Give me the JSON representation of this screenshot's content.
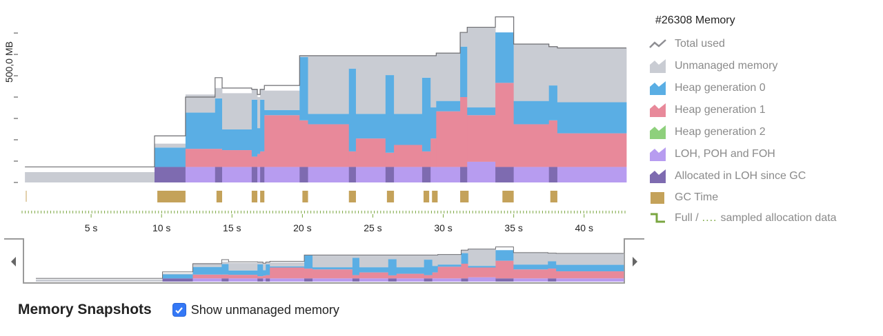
{
  "legend": {
    "title": "#26308 Memory",
    "items": [
      {
        "key": "total",
        "label": "Total used",
        "color": "#8e8e93",
        "style": "line"
      },
      {
        "key": "unmanaged",
        "label": "Unmanaged memory",
        "color": "#c9ccd3",
        "style": "area"
      },
      {
        "key": "gen0",
        "label": "Heap generation 0",
        "color": "#5aaee4",
        "style": "area"
      },
      {
        "key": "gen1",
        "label": "Heap generation 1",
        "color": "#e8899a",
        "style": "area"
      },
      {
        "key": "gen2",
        "label": "Heap generation 2",
        "color": "#8ed07c",
        "style": "area"
      },
      {
        "key": "loh",
        "label": "LOH, POH and FOH",
        "color": "#b79cf0",
        "style": "area"
      },
      {
        "key": "loh_alloc",
        "label": "Allocated in LOH since GC",
        "color": "#7e6bb0",
        "style": "area"
      },
      {
        "key": "gc",
        "label": "GC Time",
        "color": "#c4a25a",
        "style": "block"
      }
    ],
    "allocation": {
      "label_full": "Full /",
      "label_dots": "....",
      "label_rest": "sampled allocation data",
      "color": "#7aa640"
    }
  },
  "chart_data": {
    "type": "area",
    "ylabel": "500,0 MB",
    "y_tick_count": 8,
    "xlim": [
      0,
      43
    ],
    "x_ticks": [
      {
        "value": 5,
        "label": "5 s"
      },
      {
        "value": 10,
        "label": "10 s"
      },
      {
        "value": 15,
        "label": "15 s"
      },
      {
        "value": 20,
        "label": "20 s"
      },
      {
        "value": 25,
        "label": "25 s"
      },
      {
        "value": 30,
        "label": "30 s"
      },
      {
        "value": 35,
        "label": "35 s"
      },
      {
        "value": 40,
        "label": "40 s"
      }
    ],
    "gc_events": [
      [
        9.7,
        11.7
      ],
      [
        13.9,
        14.3
      ],
      [
        16.4,
        16.8
      ],
      [
        17.0,
        17.3
      ],
      [
        20.0,
        20.4
      ],
      [
        23.3,
        23.8
      ],
      [
        26.0,
        26.5
      ],
      [
        28.6,
        29.0
      ],
      [
        29.2,
        29.6
      ],
      [
        31.2,
        31.8
      ],
      [
        34.2,
        35.0
      ],
      [
        37.6,
        38.1
      ]
    ],
    "segments": [
      {
        "x0": 0.3,
        "x1": 9.5,
        "total": 60,
        "unmanaged": 40,
        "gen0": 0,
        "gen1": 0,
        "loh": 0,
        "loh_alloc": 0
      },
      {
        "x0": 9.5,
        "x1": 11.7,
        "total": 180,
        "unmanaged": 15,
        "gen0": 75,
        "gen1": 0,
        "loh": 0,
        "loh_alloc": 60
      },
      {
        "x0": 11.7,
        "x1": 13.8,
        "total": 330,
        "unmanaged": 70,
        "gen0": 140,
        "gen1": 70,
        "loh": 60,
        "loh_alloc": 0
      },
      {
        "x0": 13.8,
        "x1": 14.3,
        "total": 405,
        "unmanaged": 40,
        "gen0": 195,
        "gen1": 70,
        "loh": 0,
        "loh_alloc": 60
      },
      {
        "x0": 14.3,
        "x1": 16.4,
        "total": 365,
        "unmanaged": 140,
        "gen0": 80,
        "gen1": 65,
        "loh": 60,
        "loh_alloc": 0
      },
      {
        "x0": 16.4,
        "x1": 16.8,
        "total": 360,
        "unmanaged": 40,
        "gen0": 220,
        "gen1": 40,
        "loh": 0,
        "loh_alloc": 60
      },
      {
        "x0": 16.8,
        "x1": 17.0,
        "total": 340,
        "unmanaged": 120,
        "gen0": 100,
        "gen1": 50,
        "loh": 60,
        "loh_alloc": 0
      },
      {
        "x0": 17.0,
        "x1": 17.3,
        "total": 360,
        "unmanaged": 40,
        "gen0": 200,
        "gen1": 60,
        "loh": 0,
        "loh_alloc": 60
      },
      {
        "x0": 17.3,
        "x1": 19.8,
        "total": 375,
        "unmanaged": 75,
        "gen0": 20,
        "gen1": 200,
        "loh": 60,
        "loh_alloc": 0
      },
      {
        "x0": 19.8,
        "x1": 20.4,
        "total": 490,
        "unmanaged": 5,
        "gen0": 245,
        "gen1": 180,
        "loh": 0,
        "loh_alloc": 60
      },
      {
        "x0": 20.4,
        "x1": 23.3,
        "total": 490,
        "unmanaged": 225,
        "gen0": 40,
        "gen1": 165,
        "loh": 60,
        "loh_alloc": 0
      },
      {
        "x0": 23.3,
        "x1": 23.8,
        "total": 490,
        "unmanaged": 50,
        "gen0": 320,
        "gen1": 60,
        "loh": 0,
        "loh_alloc": 60
      },
      {
        "x0": 23.8,
        "x1": 25.9,
        "total": 490,
        "unmanaged": 225,
        "gen0": 95,
        "gen1": 110,
        "loh": 60,
        "loh_alloc": 0
      },
      {
        "x0": 25.9,
        "x1": 26.5,
        "total": 490,
        "unmanaged": 75,
        "gen0": 300,
        "gen1": 55,
        "loh": 0,
        "loh_alloc": 60
      },
      {
        "x0": 26.5,
        "x1": 28.5,
        "total": 490,
        "unmanaged": 225,
        "gen0": 120,
        "gen1": 85,
        "loh": 60,
        "loh_alloc": 0
      },
      {
        "x0": 28.5,
        "x1": 29.1,
        "total": 490,
        "unmanaged": 85,
        "gen0": 285,
        "gen1": 60,
        "loh": 0,
        "loh_alloc": 60
      },
      {
        "x0": 29.1,
        "x1": 29.5,
        "total": 490,
        "unmanaged": 200,
        "gen0": 120,
        "gen1": 110,
        "loh": 60,
        "loh_alloc": 0
      },
      {
        "x0": 29.5,
        "x1": 31.2,
        "total": 500,
        "unmanaged": 185,
        "gen0": 40,
        "gen1": 215,
        "loh": 60,
        "loh_alloc": 0
      },
      {
        "x0": 31.2,
        "x1": 31.7,
        "total": 580,
        "unmanaged": 55,
        "gen0": 195,
        "gen1": 270,
        "loh": 0,
        "loh_alloc": 60
      },
      {
        "x0": 31.7,
        "x1": 33.7,
        "total": 600,
        "unmanaged": 310,
        "gen0": 30,
        "gen1": 180,
        "loh": 80,
        "loh_alloc": 0
      },
      {
        "x0": 33.7,
        "x1": 35.0,
        "total": 640,
        "unmanaged": 0,
        "gen0": 195,
        "gen1": 325,
        "loh": 0,
        "loh_alloc": 60
      },
      {
        "x0": 35.0,
        "x1": 37.5,
        "total": 535,
        "unmanaged": 220,
        "gen0": 90,
        "gen1": 165,
        "loh": 60,
        "loh_alloc": 0
      },
      {
        "x0": 37.5,
        "x1": 38.1,
        "total": 525,
        "unmanaged": 150,
        "gen0": 135,
        "gen1": 180,
        "loh": 0,
        "loh_alloc": 60
      },
      {
        "x0": 38.1,
        "x1": 43.0,
        "total": 520,
        "unmanaged": 210,
        "gen0": 120,
        "gen1": 130,
        "loh": 60,
        "loh_alloc": 0
      }
    ],
    "grid": false,
    "legend_position": "right"
  },
  "footer": {
    "title": "Memory Snapshots",
    "checkbox_label": "Show unmanaged memory",
    "checkbox_checked": true
  },
  "icons": {
    "left": "chevron-left-icon",
    "right": "chevron-right-icon",
    "check": "checkmark-icon"
  }
}
